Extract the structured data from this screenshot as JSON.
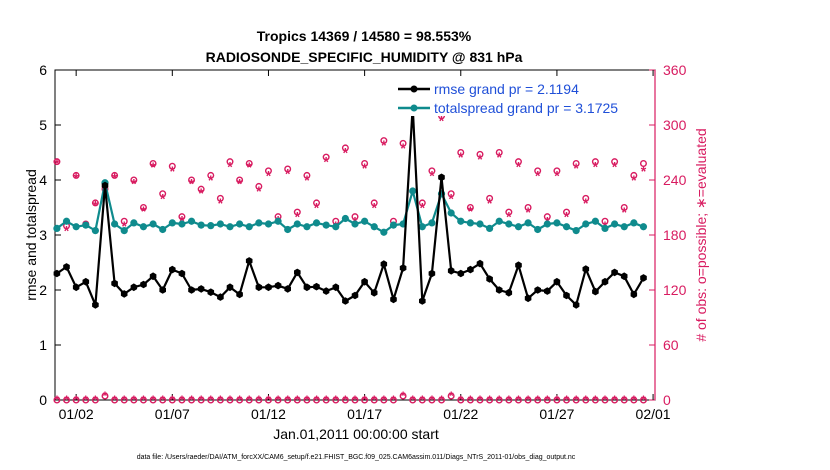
{
  "chart_data": {
    "type": "line",
    "title": "Tropics 14369 / 14580 = 98.553%",
    "subtitle": "RADIOSONDE_SPECIFIC_HUMIDITY @ 831 hPa",
    "xlabel": "Jan.01,2011 00:00:00 start",
    "ylabel": "rmse and totalspread",
    "y2label": "# of obs: o=possible; ∗=evaluated",
    "xlim": [
      0.4,
      31.6
    ],
    "ylim": [
      0,
      6
    ],
    "y2lim": [
      0,
      360
    ],
    "xtick_values": [
      1.5,
      6.5,
      11.5,
      16.5,
      21.5,
      26.5,
      31.5
    ],
    "xtick_labels": [
      "01/02",
      "01/07",
      "01/12",
      "01/17",
      "01/22",
      "01/27",
      "02/01"
    ],
    "yticks": [
      0,
      1,
      2,
      3,
      4,
      5,
      6
    ],
    "y2ticks": [
      0,
      60,
      120,
      180,
      240,
      300,
      360
    ],
    "footnote": "data file: /Users/raeder/DAI/ATM_forcXX/CAM6_setup/f.e21.FHIST_BGC.f09_025.CAM6assim.011/Diags_NTrS_2011-01/obs_diag_output.nc",
    "colors": {
      "rmse": "#000000",
      "spread": "#0f8b8d",
      "obs": "#d81b60",
      "legend_text": "#1f4fd8"
    },
    "series": [
      {
        "name": "rmse grand pr = 2.1194",
        "x": [
          0.5,
          1.0,
          1.5,
          2.0,
          2.5,
          3.0,
          3.5,
          4.0,
          4.5,
          5.0,
          5.5,
          6.0,
          6.5,
          7.0,
          7.5,
          8.0,
          8.5,
          9.0,
          9.5,
          10.0,
          10.5,
          11.0,
          11.5,
          12.0,
          12.5,
          13.0,
          13.5,
          14.0,
          14.5,
          15.0,
          15.5,
          16.0,
          16.5,
          17.0,
          17.5,
          18.0,
          18.5,
          19.0,
          19.5,
          20.0,
          20.5,
          21.0,
          21.5,
          22.0,
          22.5,
          23.0,
          23.5,
          24.0,
          24.5,
          25.0,
          25.5,
          26.0,
          26.5,
          27.0,
          27.5,
          28.0,
          28.5,
          29.0,
          29.5,
          30.0,
          30.5,
          31.0
        ],
        "y": [
          2.3,
          2.42,
          2.05,
          2.15,
          1.73,
          3.9,
          2.12,
          1.93,
          2.05,
          2.1,
          2.25,
          2.0,
          2.37,
          2.3,
          2.0,
          2.02,
          1.96,
          1.87,
          2.05,
          1.92,
          2.53,
          2.05,
          2.05,
          2.08,
          2.02,
          2.32,
          2.05,
          2.06,
          1.98,
          2.05,
          1.8,
          1.9,
          2.15,
          1.95,
          2.47,
          1.83,
          2.4,
          5.33,
          1.8,
          2.3,
          4.05,
          2.35,
          2.3,
          2.37,
          2.48,
          2.2,
          2.0,
          1.95,
          2.45,
          1.85,
          2.0,
          1.98,
          2.15,
          1.9,
          1.73,
          2.38,
          1.97,
          2.15,
          2.32,
          2.25,
          1.92,
          2.22
        ]
      },
      {
        "name": "totalspread grand pr = 3.1725",
        "x": [
          0.5,
          1.0,
          1.5,
          2.0,
          2.5,
          3.0,
          3.5,
          4.0,
          4.5,
          5.0,
          5.5,
          6.0,
          6.5,
          7.0,
          7.5,
          8.0,
          8.5,
          9.0,
          9.5,
          10.0,
          10.5,
          11.0,
          11.5,
          12.0,
          12.5,
          13.0,
          13.5,
          14.0,
          14.5,
          15.0,
          15.5,
          16.0,
          16.5,
          17.0,
          17.5,
          18.0,
          18.5,
          19.0,
          19.5,
          20.0,
          20.5,
          21.0,
          21.5,
          22.0,
          22.5,
          23.0,
          23.5,
          24.0,
          24.5,
          25.0,
          25.5,
          26.0,
          26.5,
          27.0,
          27.5,
          28.0,
          28.5,
          29.0,
          29.5,
          30.0,
          30.5,
          31.0
        ],
        "y": [
          3.12,
          3.25,
          3.15,
          3.18,
          3.08,
          3.95,
          3.2,
          3.08,
          3.22,
          3.15,
          3.2,
          3.1,
          3.22,
          3.2,
          3.25,
          3.18,
          3.17,
          3.2,
          3.15,
          3.2,
          3.15,
          3.22,
          3.2,
          3.25,
          3.1,
          3.2,
          3.15,
          3.22,
          3.18,
          3.15,
          3.3,
          3.2,
          3.25,
          3.15,
          3.05,
          3.18,
          3.2,
          3.8,
          3.15,
          3.22,
          3.75,
          3.4,
          3.25,
          3.22,
          3.2,
          3.12,
          3.25,
          3.2,
          3.15,
          3.22,
          3.1,
          3.2,
          3.22,
          3.15,
          3.08,
          3.2,
          3.25,
          3.12,
          3.2,
          3.15,
          3.22,
          3.15
        ]
      },
      {
        "name": "obs possible",
        "x": [
          0.5,
          1.0,
          1.5,
          2.0,
          2.5,
          3.0,
          3.5,
          4.0,
          4.5,
          5.0,
          5.5,
          6.0,
          6.5,
          7.0,
          7.5,
          8.0,
          8.5,
          9.0,
          9.5,
          10.0,
          10.5,
          11.0,
          11.5,
          12.0,
          12.5,
          13.0,
          13.5,
          14.0,
          14.5,
          15.0,
          15.5,
          16.0,
          16.5,
          17.0,
          17.5,
          18.0,
          18.5,
          19.0,
          19.5,
          20.0,
          20.5,
          21.0,
          21.5,
          22.0,
          22.5,
          23.0,
          23.5,
          24.0,
          24.5,
          25.0,
          25.5,
          26.0,
          26.5,
          27.0,
          27.5,
          28.0,
          28.5,
          29.0,
          29.5,
          30.0,
          30.5,
          31.0
        ],
        "y": [
          260,
          190,
          245,
          192,
          215,
          230,
          245,
          195,
          240,
          210,
          258,
          225,
          255,
          200,
          240,
          230,
          245,
          220,
          260,
          240,
          258,
          233,
          250,
          200,
          252,
          205,
          245,
          215,
          265,
          195,
          275,
          200,
          258,
          215,
          283,
          195,
          280,
          325,
          215,
          250,
          310,
          225,
          270,
          210,
          268,
          220,
          270,
          205,
          260,
          210,
          250,
          200,
          250,
          205,
          258,
          220,
          260,
          195,
          260,
          210,
          245,
          258
        ],
        "marker": "circle"
      },
      {
        "name": "obs evaluated",
        "x": [
          0.5,
          1.0,
          1.5,
          2.0,
          2.5,
          3.0,
          3.5,
          4.0,
          4.5,
          5.0,
          5.5,
          6.0,
          6.5,
          7.0,
          7.5,
          8.0,
          8.5,
          9.0,
          9.5,
          10.0,
          10.5,
          11.0,
          11.5,
          12.0,
          12.5,
          13.0,
          13.5,
          14.0,
          14.5,
          15.0,
          15.5,
          16.0,
          16.5,
          17.0,
          17.5,
          18.0,
          18.5,
          19.0,
          19.5,
          20.0,
          20.5,
          21.0,
          21.5,
          22.0,
          22.5,
          23.0,
          23.5,
          24.0,
          24.5,
          25.0,
          25.5,
          26.0,
          26.5,
          27.0,
          27.5,
          28.0,
          28.5,
          29.0,
          29.5,
          30.0,
          30.5,
          31.0
        ],
        "y": [
          258,
          185,
          242,
          188,
          212,
          226,
          242,
          190,
          236,
          206,
          254,
          220,
          250,
          196,
          236,
          226,
          240,
          215,
          255,
          236,
          254,
          228,
          245,
          196,
          247,
          200,
          240,
          210,
          260,
          190,
          270,
          195,
          253,
          210,
          278,
          190,
          275,
          320,
          210,
          245,
          305,
          220,
          265,
          206,
          263,
          215,
          265,
          200,
          255,
          205,
          245,
          195,
          245,
          200,
          253,
          215,
          255,
          190,
          255,
          205,
          240,
          250
        ],
        "marker": "asterisk"
      }
    ],
    "legend": [
      {
        "label": "rmse grand pr = 2.1194",
        "series": "rmse"
      },
      {
        "label": "totalspread grand pr = 3.1725",
        "series": "spread"
      }
    ],
    "legend_position": "top-right",
    "bottom_obs_y": 0,
    "bottom_obs_spikes": [
      3,
      18.5,
      21
    ]
  }
}
